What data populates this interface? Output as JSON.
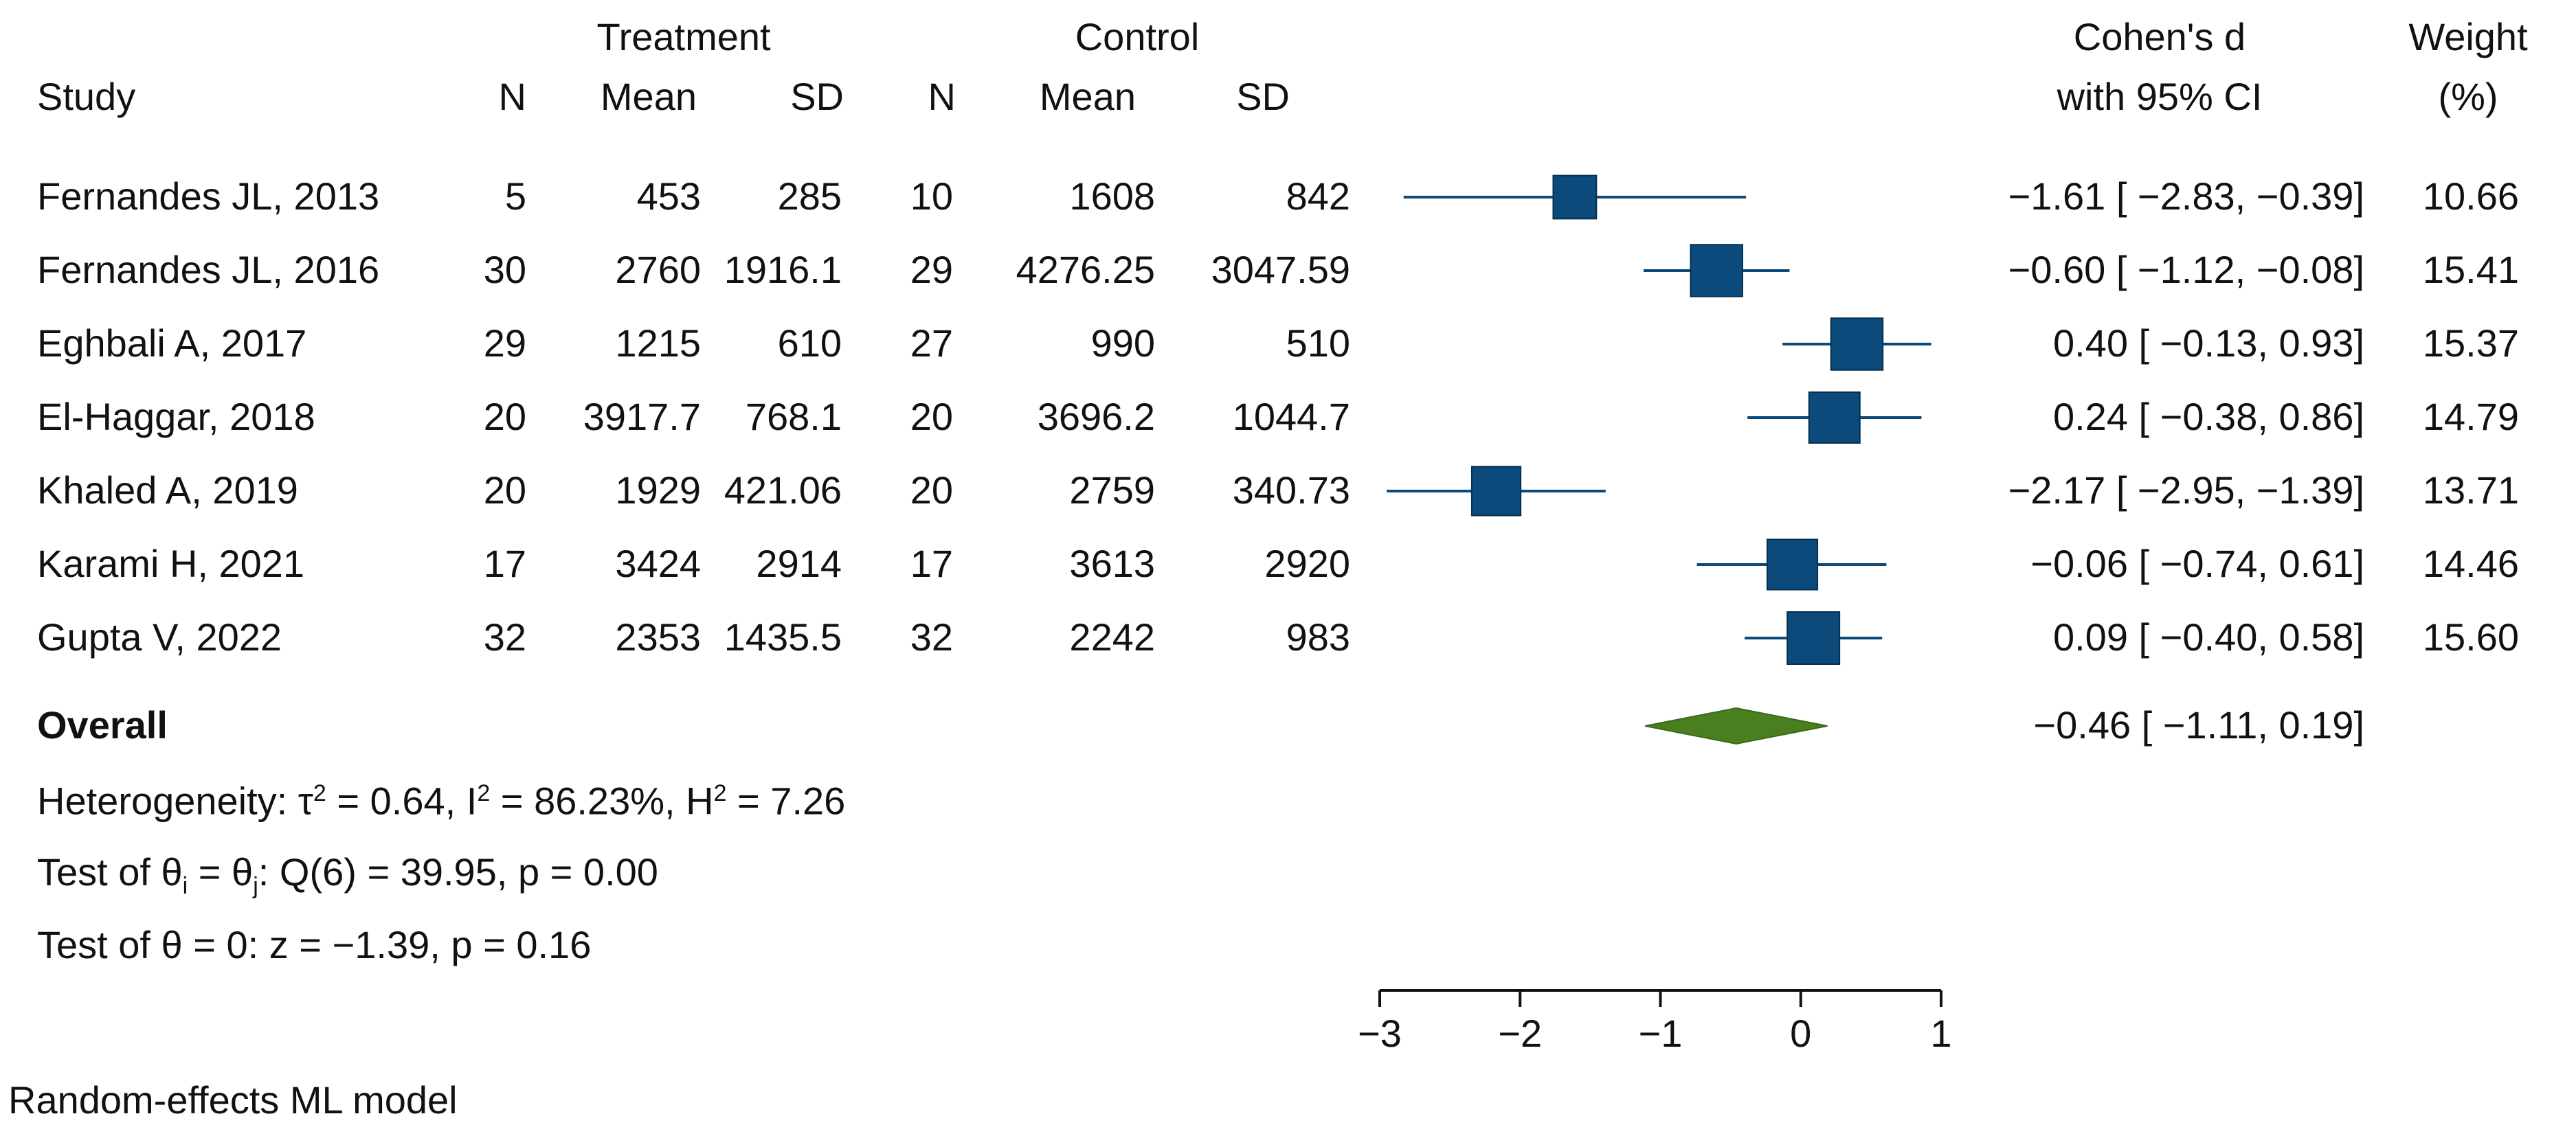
{
  "chart_data": {
    "type": "forest",
    "headers": {
      "treatment_group": "Treatment",
      "control_group": "Control",
      "study": "Study",
      "n": "N",
      "mean": "Mean",
      "sd": "SD",
      "effect_line1": "Cohen's d",
      "effect_line2": "with 95% CI",
      "weight_line1": "Weight",
      "weight_line2": "(%)"
    },
    "studies": [
      {
        "study": "Fernandes JL, 2013",
        "t_n": "5",
        "t_mean": "453",
        "t_sd": "285",
        "c_n": "10",
        "c_mean": "1608",
        "c_sd": "842",
        "d": -1.61,
        "lo": -2.83,
        "hi": -0.39,
        "ci_text": "−1.61 [ −2.83,  −0.39]",
        "weight": 10.66,
        "weight_text": "10.66"
      },
      {
        "study": "Fernandes JL, 2016",
        "t_n": "30",
        "t_mean": "2760",
        "t_sd": "1916.1",
        "c_n": "29",
        "c_mean": "4276.25",
        "c_sd": "3047.59",
        "d": -0.6,
        "lo": -1.12,
        "hi": -0.08,
        "ci_text": "−0.60 [ −1.12,  −0.08]",
        "weight": 15.41,
        "weight_text": "15.41"
      },
      {
        "study": "Eghbali A, 2017",
        "t_n": "29",
        "t_mean": "1215",
        "t_sd": "610",
        "c_n": "27",
        "c_mean": "990",
        "c_sd": "510",
        "d": 0.4,
        "lo": -0.13,
        "hi": 0.93,
        "ci_text": "0.40 [ −0.13,   0.93]",
        "weight": 15.37,
        "weight_text": "15.37"
      },
      {
        "study": "El-Haggar, 2018",
        "t_n": "20",
        "t_mean": "3917.7",
        "t_sd": "768.1",
        "c_n": "20",
        "c_mean": "3696.2",
        "c_sd": "1044.7",
        "d": 0.24,
        "lo": -0.38,
        "hi": 0.86,
        "ci_text": "0.24 [ −0.38,   0.86]",
        "weight": 14.79,
        "weight_text": "14.79"
      },
      {
        "study": "Khaled A, 2019",
        "t_n": "20",
        "t_mean": "1929",
        "t_sd": "421.06",
        "c_n": "20",
        "c_mean": "2759",
        "c_sd": "340.73",
        "d": -2.17,
        "lo": -2.95,
        "hi": -1.39,
        "ci_text": "−2.17 [ −2.95,  −1.39]",
        "weight": 13.71,
        "weight_text": "13.71"
      },
      {
        "study": "Karami H, 2021",
        "t_n": "17",
        "t_mean": "3424",
        "t_sd": "2914",
        "c_n": "17",
        "c_mean": "3613",
        "c_sd": "2920",
        "d": -0.06,
        "lo": -0.74,
        "hi": 0.61,
        "ci_text": "−0.06 [ −0.74,   0.61]",
        "weight": 14.46,
        "weight_text": "14.46"
      },
      {
        "study": "Gupta V, 2022",
        "t_n": "32",
        "t_mean": "2353",
        "t_sd": "1435.5",
        "c_n": "32",
        "c_mean": "2242",
        "c_sd": "983",
        "d": 0.09,
        "lo": -0.4,
        "hi": 0.58,
        "ci_text": "0.09 [ −0.40,   0.58]",
        "weight": 15.6,
        "weight_text": "15.60"
      }
    ],
    "overall": {
      "label": "Overall",
      "d": -0.46,
      "lo": -1.11,
      "hi": 0.19,
      "ci_text": "−0.46 [ −1.11,   0.19]"
    },
    "stats": {
      "heterogeneity_prefix": "Heterogeneity: τ",
      "tau_sup": "2",
      "heterogeneity_mid1": " = 0.64, I",
      "i_sup": "2",
      "heterogeneity_mid2": " = 86.23%, H",
      "h_sup": "2",
      "heterogeneity_end": " = 7.26",
      "test1_a": "Test of θ",
      "test1_sub_i": "i",
      "test1_b": " = θ",
      "test1_sub_j": "j",
      "test1_c": ": Q(6) = 39.95, p = 0.00",
      "test2": "Test of θ = 0: z = −1.39, p = 0.16"
    },
    "axis": {
      "xlim": [
        -3,
        1
      ],
      "ticks": [
        -3,
        -2,
        -1,
        0,
        1
      ],
      "tick_labels": [
        "−3",
        "−2",
        "−1",
        "0",
        "1"
      ]
    },
    "footnote": "Random-effects ML model",
    "colors": {
      "marker": "#0b4a7a",
      "ci_line": "#0b4a7a",
      "diamond": "#4a7f1f",
      "axis": "#111111"
    }
  }
}
